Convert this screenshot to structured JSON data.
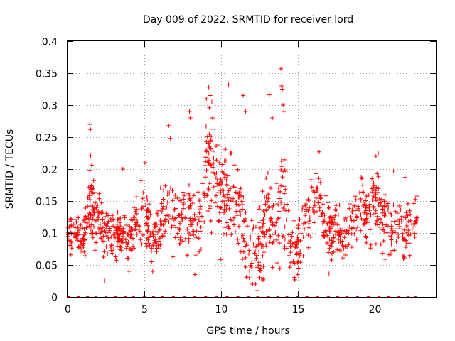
{
  "chart_data": {
    "type": "scatter",
    "title": "Day 009 of 2022, SRMTID for receiver lord",
    "xlabel": "GPS time / hours",
    "ylabel": "SRMTID / TECUs",
    "xlim": [
      0,
      24
    ],
    "ylim": [
      0,
      0.4
    ],
    "xticks": [
      0,
      5,
      10,
      15,
      20
    ],
    "xtick_labels": [
      "0",
      "5",
      "10",
      "15",
      "20"
    ],
    "yticks": [
      0,
      0.05,
      0.1,
      0.15,
      0.2,
      0.25,
      0.3,
      0.35,
      0.4
    ],
    "ytick_labels": [
      "0",
      "0.05",
      "0.1",
      "0.15",
      "0.2",
      "0.25",
      "0.3",
      "0.35",
      "0.4"
    ],
    "grid": true,
    "marker": "plus",
    "color": "#ff0000",
    "baseline_marker_color": "#ff0000",
    "activity_profile": [
      [
        0.0,
        0.1,
        0.02
      ],
      [
        0.5,
        0.105,
        0.022
      ],
      [
        1.0,
        0.085,
        0.02
      ],
      [
        1.5,
        0.15,
        0.045
      ],
      [
        2.0,
        0.115,
        0.025
      ],
      [
        2.5,
        0.095,
        0.025
      ],
      [
        3.0,
        0.1,
        0.025
      ],
      [
        3.5,
        0.095,
        0.02
      ],
      [
        4.0,
        0.085,
        0.02
      ],
      [
        4.5,
        0.115,
        0.025
      ],
      [
        5.0,
        0.14,
        0.04
      ],
      [
        5.5,
        0.085,
        0.025
      ],
      [
        6.0,
        0.11,
        0.03
      ],
      [
        6.5,
        0.14,
        0.04
      ],
      [
        7.0,
        0.125,
        0.035
      ],
      [
        7.5,
        0.12,
        0.035
      ],
      [
        8.0,
        0.13,
        0.05
      ],
      [
        8.5,
        0.11,
        0.04
      ],
      [
        9.0,
        0.19,
        0.05
      ],
      [
        9.5,
        0.21,
        0.06
      ],
      [
        10.0,
        0.16,
        0.05
      ],
      [
        10.5,
        0.16,
        0.055
      ],
      [
        11.0,
        0.14,
        0.05
      ],
      [
        11.5,
        0.11,
        0.05
      ],
      [
        12.0,
        0.08,
        0.03
      ],
      [
        12.5,
        0.075,
        0.035
      ],
      [
        13.0,
        0.14,
        0.05
      ],
      [
        13.5,
        0.12,
        0.04
      ],
      [
        14.0,
        0.16,
        0.06
      ],
      [
        14.5,
        0.09,
        0.035
      ],
      [
        15.0,
        0.08,
        0.03
      ],
      [
        15.5,
        0.115,
        0.035
      ],
      [
        16.0,
        0.15,
        0.04
      ],
      [
        16.5,
        0.14,
        0.035
      ],
      [
        17.0,
        0.1,
        0.03
      ],
      [
        17.5,
        0.11,
        0.03
      ],
      [
        18.0,
        0.09,
        0.02
      ],
      [
        18.5,
        0.11,
        0.025
      ],
      [
        19.0,
        0.14,
        0.04
      ],
      [
        19.5,
        0.13,
        0.04
      ],
      [
        20.0,
        0.15,
        0.04
      ],
      [
        20.5,
        0.12,
        0.04
      ],
      [
        21.0,
        0.1,
        0.03
      ],
      [
        21.5,
        0.11,
        0.03
      ],
      [
        22.0,
        0.1,
        0.03
      ],
      [
        22.5,
        0.12,
        0.03
      ],
      [
        22.8,
        0.13,
        0.03
      ]
    ],
    "outliers": [
      [
        1.45,
        0.27
      ],
      [
        1.5,
        0.262
      ],
      [
        1.5,
        0.221
      ],
      [
        3.6,
        0.2
      ],
      [
        5.05,
        0.21
      ],
      [
        6.6,
        0.268
      ],
      [
        6.7,
        0.248
      ],
      [
        7.95,
        0.29
      ],
      [
        8.0,
        0.28
      ],
      [
        9.05,
        0.31
      ],
      [
        9.2,
        0.328
      ],
      [
        9.3,
        0.315
      ],
      [
        9.4,
        0.305
      ],
      [
        9.45,
        0.28
      ],
      [
        10.5,
        0.332
      ],
      [
        10.4,
        0.275
      ],
      [
        11.45,
        0.315
      ],
      [
        11.6,
        0.29
      ],
      [
        13.15,
        0.316
      ],
      [
        13.35,
        0.28
      ],
      [
        13.9,
        0.357
      ],
      [
        13.95,
        0.33
      ],
      [
        14.0,
        0.325
      ],
      [
        14.05,
        0.3
      ],
      [
        14.1,
        0.29
      ],
      [
        16.4,
        0.227
      ],
      [
        20.1,
        0.22
      ],
      [
        20.25,
        0.225
      ],
      [
        21.25,
        0.197
      ],
      [
        22.0,
        0.187
      ],
      [
        12.35,
        0.01
      ],
      [
        12.25,
        0.02
      ],
      [
        2.4,
        0.025
      ],
      [
        4.0,
        0.04
      ],
      [
        15.0,
        0.035
      ],
      [
        15.05,
        0.045
      ],
      [
        11.85,
        0.03
      ],
      [
        12.75,
        0.028
      ],
      [
        8.3,
        0.035
      ],
      [
        5.55,
        0.04
      ]
    ],
    "baseline_x": [
      0.1,
      0.7,
      1.3,
      1.85,
      2.5,
      3.1,
      3.75,
      4.3,
      5.0,
      5.6,
      6.2,
      6.9,
      7.6,
      8.3,
      9.0,
      9.7,
      10.4,
      11.1,
      11.8,
      12.4,
      13.1,
      13.7,
      14.3,
      15.0,
      15.6,
      16.3,
      17.0,
      17.6,
      18.2,
      18.9,
      19.6,
      20.3,
      20.9,
      21.6,
      22.2,
      22.7
    ]
  }
}
